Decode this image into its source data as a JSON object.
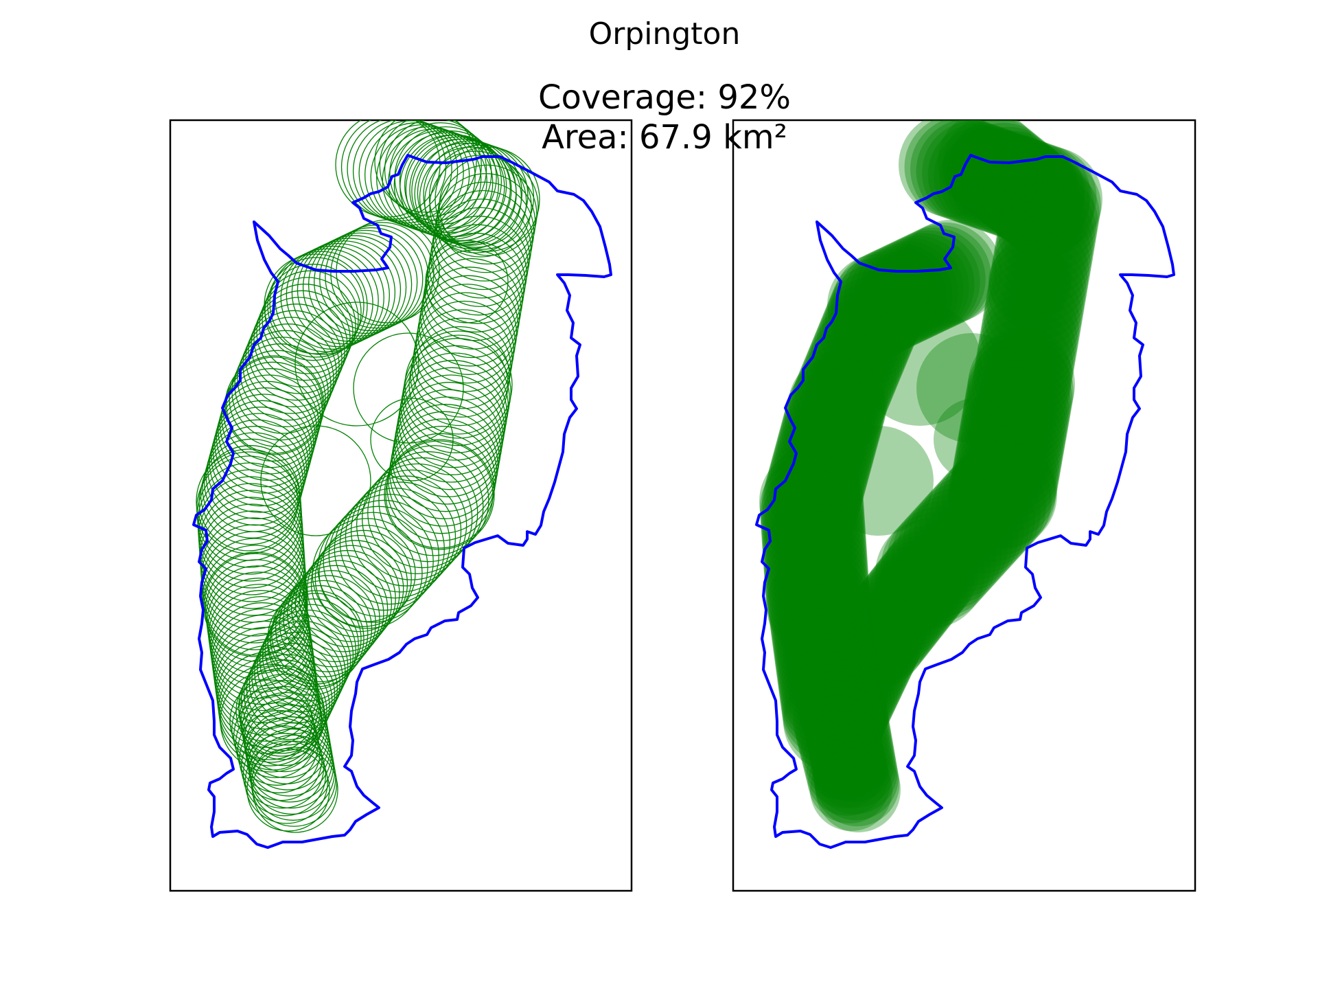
{
  "figure": {
    "title": "Orpington",
    "coverage_line": "Coverage: 92%",
    "area_line": "Area: 67.9 km²"
  },
  "panels": [
    {
      "id": "outline-view",
      "circle_style": "outline"
    },
    {
      "id": "filled-view",
      "circle_style": "filled"
    }
  ],
  "colors": {
    "boundary": "#0000ff",
    "coverage": "#008000",
    "frame": "#000000",
    "background": "#ffffff"
  }
}
